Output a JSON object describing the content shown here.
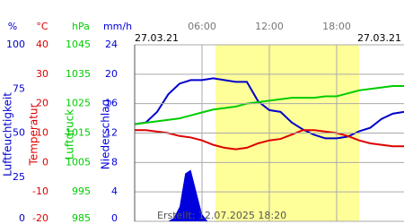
{
  "chart_data": {
    "type": "line",
    "date_left": "27.03.21",
    "date_right": "27.03.21",
    "footer": "Erstellt: 12.07.2025 18:20",
    "xlim": [
      0,
      24
    ],
    "xticks": [
      {
        "value": 6,
        "label": "06:00"
      },
      {
        "value": 12,
        "label": "12:00"
      },
      {
        "value": 18,
        "label": "18:00"
      }
    ],
    "daylight": [
      7.2,
      20
    ],
    "grid": true,
    "series": [
      {
        "name": "Luftfeuchtigkeit",
        "unit": "%",
        "color": "#0000cc",
        "style": "line",
        "ylim": [
          0,
          100
        ],
        "yticks": [
          0,
          25,
          50,
          75,
          100
        ],
        "x": [
          0,
          1,
          2,
          3,
          4,
          5,
          6,
          7,
          8,
          9,
          10,
          11,
          12,
          13,
          14,
          15,
          16,
          17,
          18,
          19,
          20,
          21,
          22,
          23,
          24
        ],
        "values": [
          55,
          56,
          62,
          72,
          78,
          80,
          80,
          81,
          80,
          79,
          79,
          68,
          63,
          62,
          56,
          52,
          49,
          47,
          47,
          48,
          51,
          53,
          58,
          61,
          62
        ]
      },
      {
        "name": "Temperatur",
        "unit": "°C",
        "color": "#dd0000",
        "style": "line",
        "ylim": [
          -20,
          40
        ],
        "yticks": [
          -20,
          -10,
          0,
          10,
          20,
          30,
          40
        ],
        "x": [
          0,
          1,
          2,
          3,
          4,
          5,
          6,
          7,
          8,
          9,
          10,
          11,
          12,
          13,
          14,
          15,
          16,
          17,
          18,
          19,
          20,
          21,
          22,
          23,
          24
        ],
        "values": [
          11,
          11,
          10.5,
          10,
          9,
          8.5,
          7.5,
          6,
          5,
          4.5,
          5,
          6.5,
          7.5,
          8,
          9.5,
          11,
          11,
          10.5,
          10,
          9,
          7.5,
          6.5,
          6,
          5.5,
          5.5
        ]
      },
      {
        "name": "Luftdruck",
        "unit": "hPa",
        "color": "#00cc00",
        "style": "line",
        "ylim": [
          985,
          1045
        ],
        "yticks": [
          985,
          995,
          1005,
          1015,
          1025,
          1035,
          1045
        ],
        "x": [
          0,
          1,
          2,
          3,
          4,
          5,
          6,
          7,
          8,
          9,
          10,
          11,
          12,
          13,
          14,
          15,
          16,
          17,
          18,
          19,
          20,
          21,
          22,
          23,
          24
        ],
        "values": [
          1018,
          1018.5,
          1019,
          1019.5,
          1020,
          1021,
          1022,
          1023,
          1023.5,
          1024,
          1025,
          1025.5,
          1026,
          1026.5,
          1027,
          1027,
          1027,
          1027.5,
          1027.5,
          1028.5,
          1029.5,
          1030,
          1030.5,
          1031,
          1031
        ]
      },
      {
        "name": "Niederschlag",
        "unit": "mm/h",
        "color": "#0000dd",
        "style": "area",
        "ylim": [
          0,
          24
        ],
        "yticks": [
          0,
          4,
          8,
          12,
          16,
          20,
          24
        ],
        "x": [
          3,
          3.5,
          4,
          4.5,
          5,
          5.5,
          6,
          6.5
        ],
        "values": [
          0,
          0.5,
          2,
          6.5,
          7,
          4,
          1,
          0
        ]
      }
    ]
  }
}
